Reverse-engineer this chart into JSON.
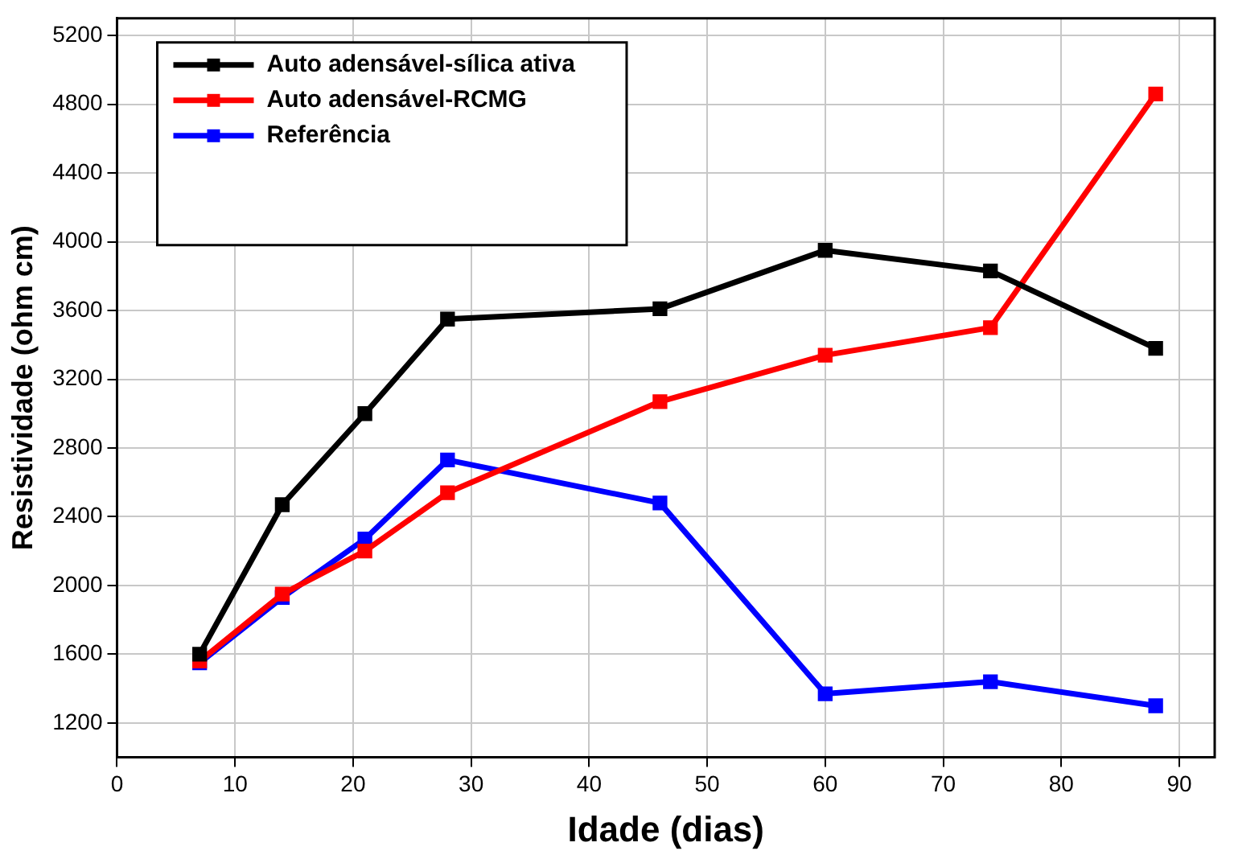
{
  "chart_data": {
    "type": "line",
    "xlabel": "Idade (dias)",
    "ylabel": "Resistividade (ohm cm)",
    "x": [
      7,
      14,
      21,
      28,
      46,
      60,
      74,
      88
    ],
    "series": [
      {
        "name": "Auto adensável-sílica ativa",
        "color": "#000000",
        "values": [
          1600,
          2470,
          3000,
          3550,
          3610,
          3950,
          3830,
          3380
        ]
      },
      {
        "name": "Auto adensável-RCMG",
        "color": "#ff0000",
        "values": [
          1560,
          1950,
          2200,
          2540,
          3070,
          3340,
          3500,
          4860
        ]
      },
      {
        "name": "Referência",
        "color": "#0000ff",
        "values": [
          1550,
          1930,
          2270,
          2730,
          2480,
          1370,
          1440,
          1300
        ]
      }
    ],
    "xlim": [
      0,
      93
    ],
    "xticks": [
      0,
      10,
      20,
      30,
      40,
      50,
      60,
      70,
      80,
      90
    ],
    "ylim": [
      1000,
      5300
    ],
    "yticks": [
      1200,
      1600,
      2000,
      2400,
      2800,
      3200,
      3600,
      4000,
      4400,
      4800,
      5200
    ],
    "grid": true,
    "legend": "top left",
    "marker": "square",
    "line_style": "solid"
  }
}
